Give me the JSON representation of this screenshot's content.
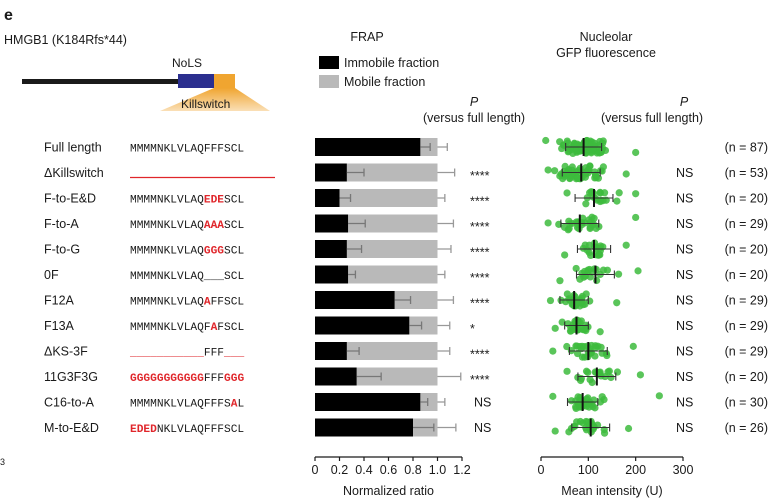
{
  "panel_letter": "e",
  "construct": "HMGB1 (K184Rfs*44)",
  "diagram": {
    "nols_label": "NoLS",
    "killswitch_label": "Killswitch",
    "colors": {
      "nols": "#2b2f8f",
      "killswitch": "#f0a530",
      "backbone": "#1a1a1a"
    }
  },
  "frap_title": "FRAP",
  "nucleolar_title_line1": "Nucleolar",
  "nucleolar_title_line2": "GFP fluorescence",
  "p_header": {
    "p": "P",
    "sub": "(versus full length)"
  },
  "legend": [
    {
      "label": "Immobile fraction",
      "color": "#000000"
    },
    {
      "label": "Mobile fraction",
      "color": "#b9b9b9"
    }
  ],
  "stray_label": "3",
  "rows": [
    {
      "name": "Full length",
      "seq": [
        {
          "t": "MMMMNKLVLAQFFFSCL",
          "red": false
        }
      ],
      "frap_sig": "",
      "fluor_sig": "",
      "n_label": "(n = 87)"
    },
    {
      "name": "ΔKillswitch",
      "seq": [],
      "deletion_line": true,
      "frap_sig": "****",
      "fluor_sig": "NS",
      "n_label": "(n = 53)"
    },
    {
      "name": "F-to-E&D",
      "seq": [
        {
          "t": "MMMMNKLVLAQ",
          "red": false
        },
        {
          "t": "EDE",
          "red": true
        },
        {
          "t": "SCL",
          "red": false
        }
      ],
      "frap_sig": "****",
      "fluor_sig": "NS",
      "n_label": "(n = 20)"
    },
    {
      "name": "F-to-A",
      "seq": [
        {
          "t": "MMMMNKLVLAQ",
          "red": false
        },
        {
          "t": "AAA",
          "red": true
        },
        {
          "t": "SCL",
          "red": false
        }
      ],
      "frap_sig": "****",
      "fluor_sig": "NS",
      "n_label": "(n = 29)"
    },
    {
      "name": "F-to-G",
      "seq": [
        {
          "t": "MMMMNKLVLAQ",
          "red": false
        },
        {
          "t": "GGG",
          "red": true
        },
        {
          "t": "SCL",
          "red": false
        }
      ],
      "frap_sig": "****",
      "fluor_sig": "NS",
      "n_label": "(n = 20)"
    },
    {
      "name": "0F",
      "seq": [
        {
          "t": "MMMMNKLVLAQ",
          "red": false
        },
        {
          "t": "___",
          "red": false
        },
        {
          "t": "SCL",
          "red": false
        }
      ],
      "frap_sig": "****",
      "fluor_sig": "NS",
      "n_label": "(n = 20)"
    },
    {
      "name": "F12A",
      "seq": [
        {
          "t": "MMMMNKLVLAQ",
          "red": false
        },
        {
          "t": "A",
          "red": true
        },
        {
          "t": "FFSCL",
          "red": false
        }
      ],
      "frap_sig": "****",
      "fluor_sig": "NS",
      "n_label": "(n = 29)"
    },
    {
      "name": "F13A",
      "seq": [
        {
          "t": "MMMMNKLVLAQF",
          "red": false
        },
        {
          "t": "A",
          "red": true
        },
        {
          "t": "FSCL",
          "red": false
        }
      ],
      "frap_sig": "*",
      "fluor_sig": "NS",
      "n_label": "(n = 29)"
    },
    {
      "name": "ΔKS-3F",
      "seq": [
        {
          "t": "___________",
          "red": true
        },
        {
          "t": "FFF",
          "red": false
        },
        {
          "t": "___",
          "red": true
        }
      ],
      "frap_sig": "****",
      "fluor_sig": "NS",
      "n_label": "(n = 29)"
    },
    {
      "name": "11G3F3G",
      "seq": [
        {
          "t": "GGGGGGGGGGG",
          "red": true
        },
        {
          "t": "FFF",
          "red": false
        },
        {
          "t": "GGG",
          "red": true
        }
      ],
      "frap_sig": "****",
      "fluor_sig": "NS",
      "n_label": "(n = 20)"
    },
    {
      "name": "C16-to-A",
      "seq": [
        {
          "t": "MMMMNKLVLAQFFFS",
          "red": false
        },
        {
          "t": "A",
          "red": true
        },
        {
          "t": "L",
          "red": false
        }
      ],
      "frap_sig": "NS",
      "fluor_sig": "NS",
      "n_label": "(n = 30)"
    },
    {
      "name": "M-to-E&D",
      "seq": [
        {
          "t": "EDED",
          "red": true
        },
        {
          "t": "NKLVLAQFFFSCL",
          "red": false
        }
      ],
      "frap_sig": "NS",
      "fluor_sig": "NS",
      "n_label": "(n = 26)"
    }
  ],
  "chart_data": [
    {
      "type": "bar",
      "stacked": true,
      "orientation": "horizontal",
      "title": "FRAP",
      "xlabel": "Normalized ratio",
      "xlim": [
        0,
        1.2
      ],
      "xticks": [
        0,
        0.2,
        0.4,
        0.6,
        0.8,
        1,
        1.2
      ],
      "xtick_labels": [
        "0",
        "0.2",
        "0.4",
        "0.6",
        "0.8",
        "1.0",
        "1.2"
      ],
      "categories": [
        "Full length",
        "ΔKillswitch",
        "F-to-E&D",
        "F-to-A",
        "F-to-G",
        "0F",
        "F12A",
        "F13A",
        "ΔKS-3F",
        "11G3F3G",
        "C16-to-A",
        "M-to-E&D"
      ],
      "series": [
        {
          "name": "Immobile fraction",
          "color": "#000000",
          "values": [
            0.86,
            0.26,
            0.2,
            0.27,
            0.26,
            0.27,
            0.65,
            0.77,
            0.26,
            0.34,
            0.86,
            0.8
          ],
          "error": [
            0.08,
            0.14,
            0.09,
            0.14,
            0.12,
            0.06,
            0.13,
            0.1,
            0.1,
            0.2,
            0.06,
            0.17
          ]
        },
        {
          "name": "Mobile fraction",
          "color": "#b9b9b9",
          "values": [
            0.14,
            0.74,
            0.8,
            0.73,
            0.74,
            0.73,
            0.35,
            0.23,
            0.74,
            0.66,
            0.14,
            0.2
          ],
          "error": [
            0.08,
            0.14,
            0.06,
            0.13,
            0.11,
            0.06,
            0.13,
            0.1,
            0.1,
            0.19,
            0.06,
            0.15
          ]
        }
      ],
      "legend_position": "top"
    },
    {
      "type": "scatter",
      "title": "Nucleolar GFP fluorescence",
      "xlabel": "Mean intensity (U)",
      "xlim": [
        0,
        300
      ],
      "xticks": [
        0,
        100,
        200,
        300
      ],
      "categories": [
        "Full length",
        "ΔKillswitch",
        "F-to-E&D",
        "F-to-A",
        "F-to-G",
        "0F",
        "F12A",
        "F13A",
        "ΔKS-3F",
        "11G3F3G",
        "C16-to-A",
        "M-to-E&D"
      ],
      "point_color": "#3dbb3d",
      "stats": [
        {
          "mean": 90,
          "sd": 38,
          "min": 10,
          "max": 200,
          "n": 87
        },
        {
          "mean": 85,
          "sd": 40,
          "min": 15,
          "max": 180,
          "n": 53
        },
        {
          "mean": 112,
          "sd": 40,
          "min": 55,
          "max": 200,
          "n": 20
        },
        {
          "mean": 82,
          "sd": 40,
          "min": 15,
          "max": 200,
          "n": 29
        },
        {
          "mean": 112,
          "sd": 35,
          "min": 50,
          "max": 180,
          "n": 20
        },
        {
          "mean": 115,
          "sd": 40,
          "min": 40,
          "max": 205,
          "n": 20
        },
        {
          "mean": 70,
          "sd": 30,
          "min": 20,
          "max": 160,
          "n": 29
        },
        {
          "mean": 75,
          "sd": 25,
          "min": 30,
          "max": 125,
          "n": 29
        },
        {
          "mean": 100,
          "sd": 40,
          "min": 25,
          "max": 195,
          "n": 29
        },
        {
          "mean": 118,
          "sd": 40,
          "min": 55,
          "max": 210,
          "n": 20
        },
        {
          "mean": 88,
          "sd": 32,
          "min": 25,
          "max": 250,
          "n": 30
        },
        {
          "mean": 105,
          "sd": 40,
          "min": 30,
          "max": 185,
          "n": 26
        }
      ]
    }
  ]
}
